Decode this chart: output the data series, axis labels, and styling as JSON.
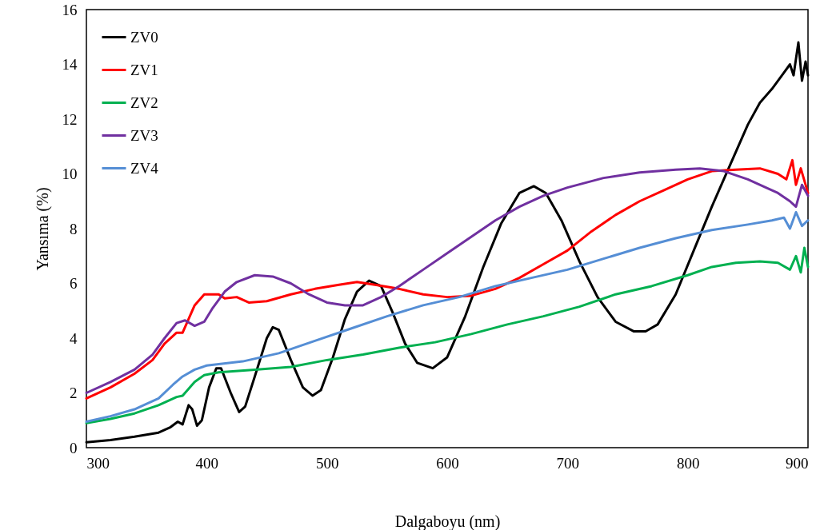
{
  "chart_data": {
    "type": "line",
    "xlabel": "Dalgaboyu (nm)",
    "ylabel": "Yansıma (%)",
    "xlim": [
      300,
      900
    ],
    "xticks": [
      300,
      400,
      500,
      600,
      700,
      800,
      900
    ],
    "ylim": [
      0,
      16
    ],
    "yticks": [
      0,
      2,
      4,
      6,
      8,
      10,
      12,
      14,
      16
    ],
    "grid": false,
    "legend": "top left",
    "line_style": "solid",
    "marker": "none",
    "series": [
      {
        "name": "ZV0",
        "color": "#000000",
        "x": [
          300,
          320,
          340,
          360,
          370,
          376,
          380,
          385,
          388,
          392,
          396,
          402,
          408,
          412,
          420,
          427,
          432,
          440,
          450,
          455,
          460,
          470,
          480,
          488,
          495,
          505,
          515,
          525,
          535,
          545,
          555,
          565,
          575,
          588,
          600,
          615,
          630,
          645,
          660,
          672,
          682,
          695,
          710,
          725,
          740,
          755,
          765,
          775,
          790,
          805,
          820,
          835,
          850,
          860,
          870,
          880,
          885,
          888,
          892,
          895,
          898,
          900
        ],
        "values": [
          0.2,
          0.28,
          0.4,
          0.55,
          0.75,
          0.95,
          0.85,
          1.55,
          1.4,
          0.8,
          1.0,
          2.2,
          2.9,
          2.9,
          2.0,
          1.3,
          1.5,
          2.6,
          4.0,
          4.4,
          4.3,
          3.2,
          2.2,
          1.9,
          2.1,
          3.3,
          4.7,
          5.7,
          6.1,
          5.9,
          4.9,
          3.8,
          3.1,
          2.9,
          3.3,
          4.8,
          6.6,
          8.2,
          9.3,
          9.55,
          9.3,
          8.3,
          6.8,
          5.5,
          4.6,
          4.25,
          4.25,
          4.5,
          5.6,
          7.2,
          8.8,
          10.3,
          11.8,
          12.6,
          13.1,
          13.7,
          14.0,
          13.6,
          14.8,
          13.4,
          14.1,
          13.6
        ]
      },
      {
        "name": "ZV1",
        "color": "#ff0000",
        "x": [
          300,
          320,
          340,
          355,
          365,
          375,
          380,
          390,
          398,
          410,
          415,
          425,
          435,
          450,
          470,
          490,
          510,
          525,
          540,
          560,
          580,
          600,
          620,
          640,
          660,
          680,
          700,
          720,
          740,
          760,
          780,
          800,
          820,
          840,
          860,
          875,
          882,
          887,
          890,
          894,
          898,
          900
        ],
        "values": [
          1.8,
          2.2,
          2.7,
          3.2,
          3.8,
          4.2,
          4.2,
          5.2,
          5.6,
          5.6,
          5.45,
          5.5,
          5.3,
          5.35,
          5.6,
          5.8,
          5.95,
          6.05,
          5.95,
          5.8,
          5.6,
          5.5,
          5.55,
          5.8,
          6.2,
          6.7,
          7.2,
          7.9,
          8.5,
          9.0,
          9.4,
          9.8,
          10.1,
          10.15,
          10.2,
          10.0,
          9.8,
          10.5,
          9.6,
          10.2,
          9.6,
          9.3
        ]
      },
      {
        "name": "ZV2",
        "color": "#00b050",
        "x": [
          300,
          320,
          340,
          360,
          375,
          380,
          390,
          398,
          410,
          440,
          470,
          500,
          530,
          560,
          590,
          620,
          650,
          680,
          710,
          740,
          770,
          800,
          820,
          840,
          860,
          875,
          885,
          890,
          894,
          897,
          900
        ],
        "values": [
          0.9,
          1.05,
          1.25,
          1.55,
          1.85,
          1.9,
          2.4,
          2.65,
          2.75,
          2.85,
          2.95,
          3.2,
          3.4,
          3.65,
          3.85,
          4.15,
          4.5,
          4.8,
          5.15,
          5.6,
          5.9,
          6.3,
          6.6,
          6.75,
          6.8,
          6.75,
          6.5,
          7.0,
          6.4,
          7.3,
          6.6
        ]
      },
      {
        "name": "ZV3",
        "color": "#7030a0",
        "x": [
          300,
          320,
          340,
          355,
          365,
          375,
          382,
          390,
          398,
          405,
          415,
          425,
          440,
          455,
          470,
          485,
          500,
          515,
          530,
          545,
          560,
          580,
          600,
          620,
          640,
          660,
          680,
          700,
          730,
          760,
          790,
          810,
          830,
          850,
          865,
          875,
          885,
          890,
          895,
          900
        ],
        "values": [
          2.0,
          2.4,
          2.85,
          3.4,
          4.0,
          4.55,
          4.65,
          4.45,
          4.6,
          5.1,
          5.7,
          6.05,
          6.3,
          6.25,
          6.0,
          5.6,
          5.3,
          5.2,
          5.2,
          5.5,
          5.9,
          6.5,
          7.1,
          7.7,
          8.3,
          8.8,
          9.2,
          9.5,
          9.85,
          10.05,
          10.15,
          10.2,
          10.1,
          9.8,
          9.5,
          9.3,
          9.0,
          8.8,
          9.6,
          9.2
        ]
      },
      {
        "name": "ZV4",
        "color": "#558ed5",
        "x": [
          300,
          320,
          340,
          360,
          372,
          380,
          390,
          400,
          430,
          460,
          490,
          520,
          550,
          580,
          610,
          640,
          670,
          700,
          730,
          760,
          790,
          820,
          850,
          870,
          880,
          885,
          890,
          895,
          900
        ],
        "values": [
          0.95,
          1.15,
          1.4,
          1.8,
          2.3,
          2.6,
          2.85,
          3.0,
          3.15,
          3.45,
          3.9,
          4.35,
          4.8,
          5.2,
          5.5,
          5.9,
          6.2,
          6.5,
          6.9,
          7.3,
          7.65,
          7.95,
          8.15,
          8.3,
          8.4,
          8.0,
          8.6,
          8.1,
          8.3
        ]
      }
    ]
  }
}
